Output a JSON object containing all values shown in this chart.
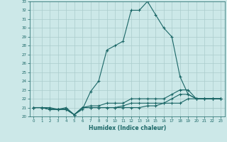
{
  "xlabel": "Humidex (Indice chaleur)",
  "ylabel": "",
  "background_color": "#cce8e8",
  "grid_color": "#aacccc",
  "line_color": "#1a6666",
  "xlim": [
    -0.5,
    23.5
  ],
  "ylim": [
    20,
    33
  ],
  "x": [
    0,
    1,
    2,
    3,
    4,
    5,
    6,
    7,
    8,
    9,
    10,
    11,
    12,
    13,
    14,
    15,
    16,
    17,
    18,
    19,
    20,
    21,
    22,
    23
  ],
  "line1": [
    21,
    21,
    21,
    20.8,
    21,
    20.2,
    20.8,
    22.8,
    24,
    27.5,
    28,
    28.5,
    32,
    32,
    33,
    31.5,
    30,
    29,
    24.5,
    22.5,
    22,
    22,
    22,
    22
  ],
  "line2": [
    21,
    21,
    20.8,
    20.8,
    20.8,
    20.2,
    21,
    21.2,
    21.2,
    21.5,
    21.5,
    21.5,
    22,
    22,
    22,
    22,
    22,
    22.5,
    23,
    23,
    22,
    22,
    22,
    22
  ],
  "line3": [
    21,
    21,
    20.8,
    20.8,
    20.8,
    20.2,
    21,
    21,
    21,
    21,
    21,
    21.2,
    21.5,
    21.5,
    21.5,
    21.5,
    21.5,
    22,
    22.5,
    22.5,
    22,
    22,
    22,
    22
  ],
  "line4": [
    21,
    21,
    20.8,
    20.8,
    20.8,
    20.2,
    21,
    21,
    21,
    21,
    21,
    21,
    21,
    21,
    21.2,
    21.2,
    21.5,
    21.5,
    21.5,
    22,
    22,
    22,
    22,
    22
  ]
}
